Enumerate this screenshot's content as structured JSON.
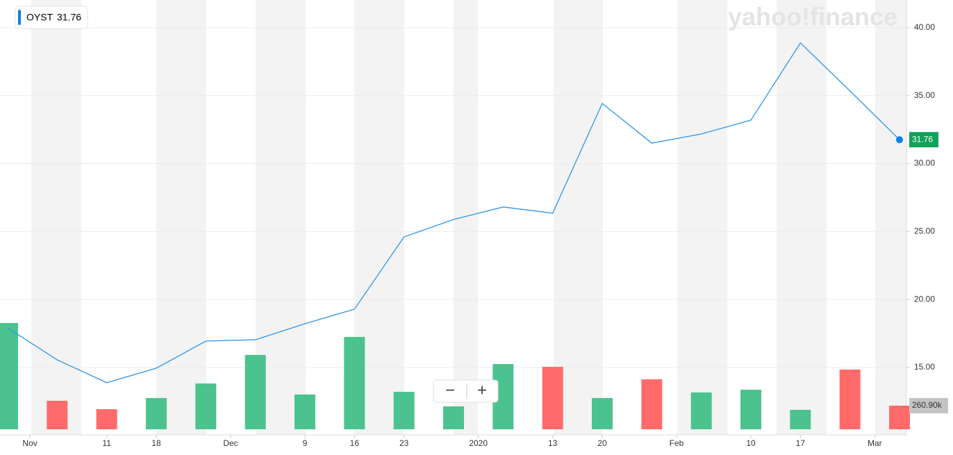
{
  "chart_data": {
    "type": "line",
    "symbol": "OYST",
    "last_price": 31.76,
    "watermark": "yahoo!finance",
    "zoom_out": "−",
    "zoom_in": "+",
    "x": [
      0,
      1,
      2,
      3,
      4,
      5,
      6,
      7,
      8,
      9,
      10,
      11,
      12,
      13,
      14,
      15,
      16,
      17,
      18
    ],
    "xlim": [
      -0.154,
      18.14
    ],
    "xticks": [
      {
        "value": 0.45,
        "label": "Nov"
      },
      {
        "value": 2,
        "label": "11"
      },
      {
        "value": 3,
        "label": "18"
      },
      {
        "value": 4.5,
        "label": "Dec"
      },
      {
        "value": 6,
        "label": "9"
      },
      {
        "value": 7,
        "label": "16"
      },
      {
        "value": 8,
        "label": "23"
      },
      {
        "value": 9.5,
        "label": "2020"
      },
      {
        "value": 11,
        "label": "13"
      },
      {
        "value": 12,
        "label": "20"
      },
      {
        "value": 13.5,
        "label": "Feb"
      },
      {
        "value": 15,
        "label": "10"
      },
      {
        "value": 16,
        "label": "17"
      },
      {
        "value": 17.5,
        "label": "Mar"
      }
    ],
    "ylim": [
      10.45,
      42.04
    ],
    "yticks": [
      {
        "value": 15,
        "label": "15.00"
      },
      {
        "value": 20,
        "label": "20.00"
      },
      {
        "value": 25,
        "label": "25.00"
      },
      {
        "value": 30,
        "label": "30.00"
      },
      {
        "value": 35,
        "label": "35.00"
      },
      {
        "value": 40,
        "label": "40.00"
      }
    ],
    "y2lim": [
      0,
      4740000
    ],
    "grid": true,
    "series": [
      {
        "name": "OYST",
        "color": "#2e95e8",
        "values": [
          17.91,
          15.56,
          13.88,
          14.95,
          16.94,
          17.04,
          18.22,
          19.29,
          24.61,
          25.89,
          26.81,
          26.35,
          34.43,
          31.51,
          32.18,
          33.2,
          38.88,
          35.35,
          31.76
        ]
      },
      {
        "name": "Volume",
        "type": "bar",
        "axis": "y2",
        "colors": [
          "#4cc38e",
          "#ff6b6b",
          "#ff6b6b",
          "#4cc38e",
          "#4cc38e",
          "#4cc38e",
          "#4cc38e",
          "#4cc38e",
          "#4cc38e",
          "#4cc38e",
          "#4cc38e",
          "#ff6b6b",
          "#4cc38e",
          "#ff6b6b",
          "#4cc38e",
          "#4cc38e",
          "#4cc38e",
          "#ff6b6b",
          "#ff6b6b"
        ],
        "values": [
          1174000,
          315000,
          222000,
          345000,
          506000,
          821000,
          384000,
          1020000,
          414000,
          253000,
          721000,
          690000,
          345000,
          552000,
          407000,
          437000,
          215000,
          660000,
          260900
        ],
        "value_labels": [
          null,
          null,
          null,
          null,
          null,
          null,
          null,
          null,
          null,
          null,
          null,
          null,
          null,
          null,
          null,
          null,
          null,
          null,
          "260.90k"
        ]
      }
    ]
  }
}
